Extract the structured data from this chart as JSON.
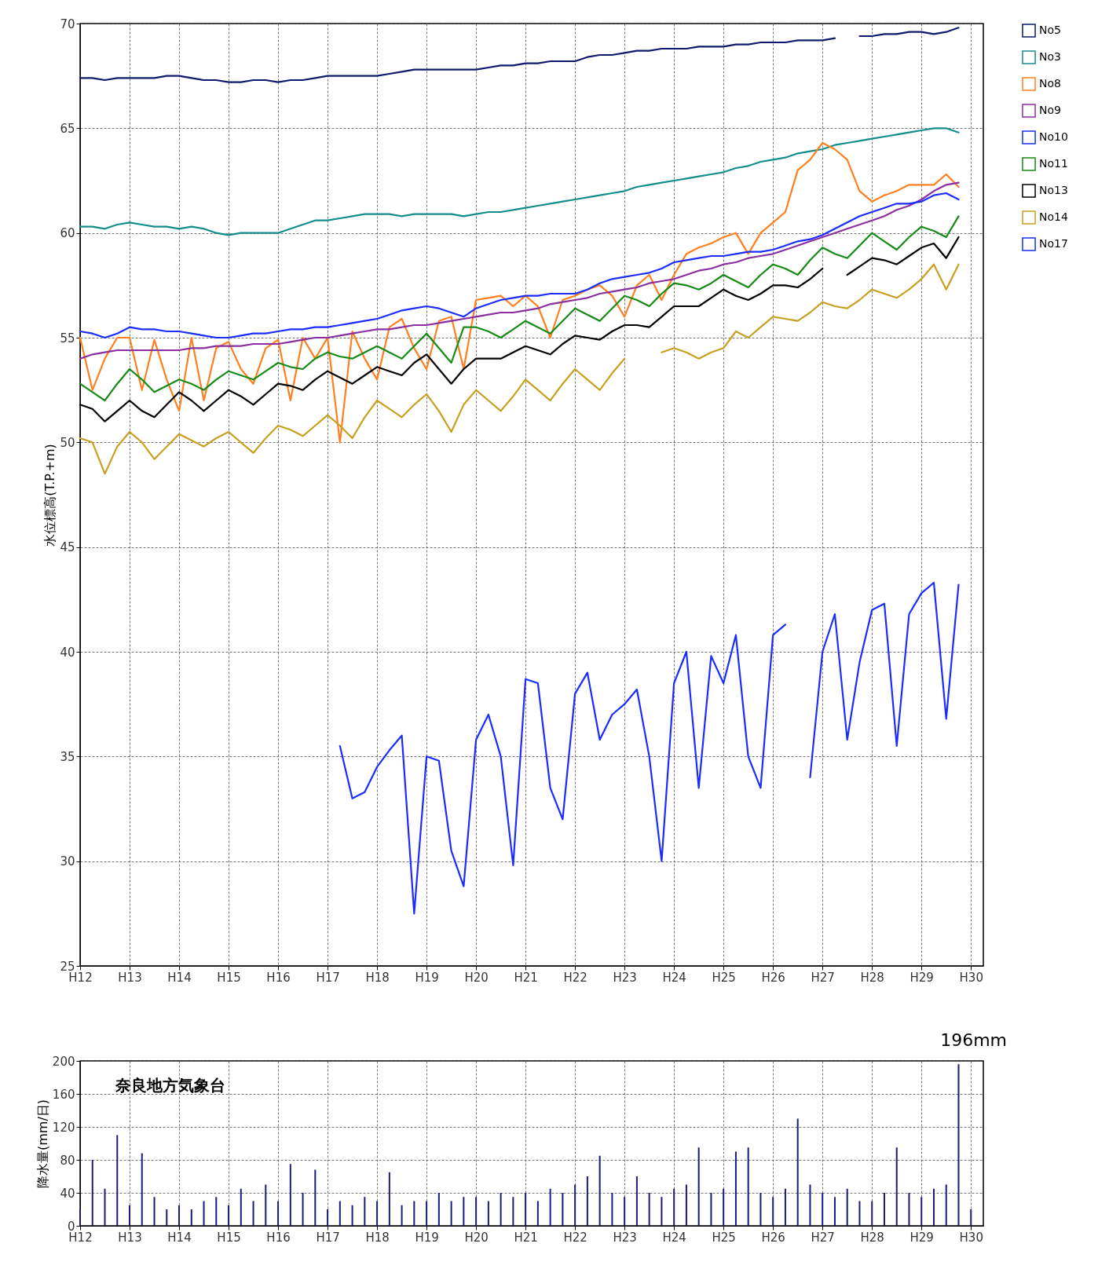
{
  "chart_data": [
    {
      "type": "line",
      "ylabel": "水位標高(T.P.+m)",
      "ylim": [
        25,
        70
      ],
      "categories": [
        "H12",
        null,
        null,
        null,
        "H13",
        null,
        null,
        null,
        "H14",
        null,
        null,
        null,
        "H15",
        null,
        null,
        null,
        "H16",
        null,
        null,
        null,
        "H17",
        null,
        null,
        null,
        "H18",
        null,
        null,
        null,
        "H19",
        null,
        null,
        null,
        "H20",
        null,
        null,
        null,
        "H21",
        null,
        null,
        null,
        "H22",
        null,
        null,
        null,
        "H23",
        null,
        null,
        null,
        "H24",
        null,
        null,
        null,
        "H25",
        null,
        null,
        null,
        "H26",
        null,
        null,
        null,
        "H27",
        null,
        null,
        null,
        "H28",
        null,
        null,
        null,
        "H29",
        null,
        null,
        null,
        "H30",
        null
      ],
      "yticks": [
        25,
        30,
        35,
        40,
        45,
        50,
        55,
        60,
        65,
        70
      ],
      "grid": true,
      "legend": "right",
      "line_style": "solid",
      "series": [
        {
          "name": "No5",
          "color": "#0d1a6e",
          "values": [
            67.4,
            67.4,
            67.3,
            67.4,
            67.4,
            67.4,
            67.4,
            67.5,
            67.5,
            67.4,
            67.3,
            67.3,
            67.2,
            67.2,
            67.3,
            67.3,
            67.2,
            67.3,
            67.3,
            67.4,
            67.5,
            67.5,
            67.5,
            67.5,
            67.5,
            67.6,
            67.7,
            67.8,
            67.8,
            67.8,
            67.8,
            67.8,
            67.8,
            67.9,
            68.0,
            68.0,
            68.1,
            68.1,
            68.2,
            68.2,
            68.2,
            68.4,
            68.5,
            68.5,
            68.6,
            68.7,
            68.7,
            68.8,
            68.8,
            68.8,
            68.9,
            68.9,
            68.9,
            69.0,
            69.0,
            69.1,
            69.1,
            69.1,
            69.2,
            69.2,
            69.2,
            69.3,
            null,
            69.4,
            69.4,
            69.5,
            69.5,
            69.6,
            69.6,
            69.5,
            69.6,
            69.8,
            null,
            null
          ]
        },
        {
          "name": "No3",
          "color": "#138c8c",
          "values": [
            60.3,
            60.3,
            60.2,
            60.4,
            60.5,
            60.4,
            60.3,
            60.3,
            60.2,
            60.3,
            60.2,
            60.0,
            59.9,
            60.0,
            60.0,
            60.0,
            60.0,
            60.2,
            60.4,
            60.6,
            60.6,
            60.7,
            60.8,
            60.9,
            60.9,
            60.9,
            60.8,
            60.9,
            60.9,
            60.9,
            60.9,
            60.8,
            60.9,
            61.0,
            61.0,
            61.1,
            61.2,
            61.3,
            61.4,
            61.5,
            61.6,
            61.7,
            61.8,
            61.9,
            62.0,
            62.2,
            62.3,
            62.4,
            62.5,
            62.6,
            62.7,
            62.8,
            62.9,
            63.1,
            63.2,
            63.4,
            63.5,
            63.6,
            63.8,
            63.9,
            64.0,
            64.2,
            64.3,
            64.4,
            64.5,
            64.6,
            64.7,
            64.8,
            64.9,
            65.0,
            65.0,
            64.8,
            null,
            null
          ]
        },
        {
          "name": "No8",
          "color": "#ff7f1f",
          "values": [
            55.0,
            52.5,
            54.0,
            55.0,
            55.0,
            52.5,
            54.9,
            53.0,
            51.5,
            55.0,
            52.0,
            54.5,
            54.8,
            53.5,
            52.8,
            54.5,
            54.9,
            52.0,
            55.0,
            54.0,
            55.0,
            50.0,
            55.3,
            54.0,
            53.0,
            55.5,
            55.9,
            54.5,
            53.5,
            55.8,
            56.0,
            53.5,
            56.8,
            56.9,
            57.0,
            56.5,
            57.0,
            56.5,
            55.0,
            56.8,
            57.0,
            57.3,
            57.5,
            57.0,
            56.0,
            57.5,
            58.0,
            56.8,
            58.0,
            59.0,
            59.3,
            59.5,
            59.8,
            60.0,
            59.0,
            60.0,
            60.5,
            61.0,
            63.0,
            63.5,
            64.3,
            64.0,
            63.5,
            62.0,
            61.5,
            61.8,
            62.0,
            62.3,
            62.3,
            62.3,
            62.8,
            62.2,
            null,
            null
          ]
        },
        {
          "name": "No9",
          "color": "#8b2fa0",
          "values": [
            54.0,
            54.2,
            54.3,
            54.4,
            54.4,
            54.4,
            54.4,
            54.4,
            54.4,
            54.5,
            54.5,
            54.6,
            54.6,
            54.6,
            54.7,
            54.7,
            54.7,
            54.8,
            54.9,
            55.0,
            55.0,
            55.1,
            55.2,
            55.3,
            55.4,
            55.4,
            55.5,
            55.6,
            55.6,
            55.7,
            55.8,
            55.9,
            56.0,
            56.1,
            56.2,
            56.2,
            56.3,
            56.4,
            56.6,
            56.7,
            56.8,
            56.9,
            57.1,
            57.2,
            57.3,
            57.4,
            57.6,
            57.7,
            57.8,
            58.0,
            58.2,
            58.3,
            58.5,
            58.6,
            58.8,
            58.9,
            59.0,
            59.2,
            59.4,
            59.6,
            59.8,
            60.0,
            60.2,
            60.4,
            60.6,
            60.8,
            61.1,
            61.3,
            61.6,
            62.0,
            62.3,
            62.4,
            null,
            null
          ]
        },
        {
          "name": "No10",
          "color": "#1a2cff",
          "values": [
            55.3,
            55.2,
            55.0,
            55.2,
            55.5,
            55.4,
            55.4,
            55.3,
            55.3,
            55.2,
            55.1,
            55.0,
            55.0,
            55.1,
            55.2,
            55.2,
            55.3,
            55.4,
            55.4,
            55.5,
            55.5,
            55.6,
            55.7,
            55.8,
            55.9,
            56.1,
            56.3,
            56.4,
            56.5,
            56.4,
            56.2,
            56.0,
            56.4,
            56.6,
            56.8,
            56.9,
            57.0,
            57.0,
            57.1,
            57.1,
            57.1,
            57.3,
            57.6,
            57.8,
            57.9,
            58.0,
            58.1,
            58.3,
            58.6,
            58.7,
            58.8,
            58.9,
            58.9,
            59.0,
            59.1,
            59.1,
            59.2,
            59.4,
            59.6,
            59.7,
            59.9,
            60.2,
            60.5,
            60.8,
            61.0,
            61.2,
            61.4,
            61.4,
            61.5,
            61.8,
            61.9,
            61.6,
            null,
            null
          ]
        },
        {
          "name": "No11",
          "color": "#158a15",
          "values": [
            52.8,
            52.4,
            52.0,
            52.8,
            53.5,
            53.0,
            52.4,
            52.7,
            53.0,
            52.8,
            52.5,
            53.0,
            53.4,
            53.2,
            53.0,
            53.4,
            53.8,
            53.6,
            53.5,
            54.0,
            54.3,
            54.1,
            54.0,
            54.3,
            54.6,
            54.3,
            54.0,
            54.6,
            55.2,
            54.5,
            53.8,
            55.5,
            55.5,
            55.3,
            55.0,
            55.4,
            55.8,
            55.5,
            55.2,
            55.8,
            56.4,
            56.1,
            55.8,
            56.4,
            57.0,
            56.8,
            56.5,
            57.1,
            57.6,
            57.5,
            57.3,
            57.6,
            58.0,
            57.7,
            57.4,
            58.0,
            58.5,
            58.3,
            58.0,
            58.7,
            59.3,
            59.0,
            58.8,
            59.4,
            60.0,
            59.6,
            59.2,
            59.8,
            60.3,
            60.1,
            59.8,
            60.8,
            null,
            null
          ]
        },
        {
          "name": "No13",
          "color": "#000000",
          "values": [
            51.8,
            51.6,
            51.0,
            51.5,
            52.0,
            51.5,
            51.2,
            51.8,
            52.4,
            52.0,
            51.5,
            52.0,
            52.5,
            52.2,
            51.8,
            52.3,
            52.8,
            52.7,
            52.5,
            53.0,
            53.4,
            53.1,
            52.8,
            53.2,
            53.6,
            53.4,
            53.2,
            53.8,
            54.2,
            53.5,
            52.8,
            53.5,
            54.0,
            54.0,
            54.0,
            54.3,
            54.6,
            54.4,
            54.2,
            54.7,
            55.1,
            55.0,
            54.9,
            55.3,
            55.6,
            55.6,
            55.5,
            56.0,
            56.5,
            56.5,
            56.5,
            56.9,
            57.3,
            57.0,
            56.8,
            57.1,
            57.5,
            57.5,
            57.4,
            57.8,
            58.3,
            null,
            58.0,
            58.4,
            58.8,
            58.7,
            58.5,
            58.9,
            59.3,
            59.5,
            58.8,
            59.8,
            null,
            null
          ]
        },
        {
          "name": "No14",
          "color": "#c8a020",
          "values": [
            50.2,
            50.0,
            48.5,
            49.8,
            50.5,
            50.0,
            49.2,
            49.8,
            50.4,
            50.1,
            49.8,
            50.2,
            50.5,
            50.0,
            49.5,
            50.2,
            50.8,
            50.6,
            50.3,
            50.8,
            51.3,
            50.8,
            50.2,
            51.2,
            52.0,
            51.6,
            51.2,
            51.8,
            52.3,
            51.5,
            50.5,
            51.8,
            52.5,
            52.0,
            51.5,
            52.2,
            53.0,
            52.5,
            52.0,
            52.8,
            53.5,
            53.0,
            52.5,
            53.3,
            54.0,
            null,
            null,
            54.3,
            54.5,
            54.3,
            54.0,
            54.3,
            54.5,
            55.3,
            55.0,
            55.5,
            56.0,
            55.9,
            55.8,
            56.2,
            56.7,
            56.5,
            56.4,
            56.8,
            57.3,
            57.1,
            56.9,
            57.3,
            57.8,
            58.5,
            57.3,
            58.5,
            null,
            null
          ]
        },
        {
          "name": "No17",
          "color": "#1a2cff",
          "values": [
            null,
            null,
            null,
            null,
            null,
            null,
            null,
            null,
            null,
            null,
            null,
            null,
            null,
            null,
            null,
            null,
            null,
            null,
            null,
            null,
            null,
            35.5,
            33.0,
            33.3,
            34.5,
            35.3,
            36.0,
            27.5,
            35.0,
            34.8,
            30.5,
            28.8,
            35.8,
            37.0,
            35.0,
            29.8,
            38.7,
            38.5,
            33.5,
            32.0,
            38.0,
            39.0,
            35.8,
            37.0,
            37.5,
            38.2,
            35.0,
            30.0,
            38.5,
            40.0,
            33.5,
            39.8,
            38.5,
            40.8,
            35.0,
            33.5,
            40.8,
            41.3,
            null,
            34.0,
            40.0,
            41.8,
            35.8,
            39.5,
            42.0,
            42.3,
            35.5,
            41.8,
            42.8,
            43.3,
            36.8,
            43.2,
            null,
            null
          ]
        }
      ]
    },
    {
      "type": "bar",
      "ylabel": "降水量(mm/日)",
      "ylim": [
        0,
        200
      ],
      "yticks": [
        0,
        40,
        80,
        120,
        160,
        200
      ],
      "grid": true,
      "color": "#1b1b7a",
      "categories": [
        "H12",
        null,
        null,
        null,
        "H13",
        null,
        null,
        null,
        "H14",
        null,
        null,
        null,
        "H15",
        null,
        null,
        null,
        "H16",
        null,
        null,
        null,
        "H17",
        null,
        null,
        null,
        "H18",
        null,
        null,
        null,
        "H19",
        null,
        null,
        null,
        "H20",
        null,
        null,
        null,
        "H21",
        null,
        null,
        null,
        "H22",
        null,
        null,
        null,
        "H23",
        null,
        null,
        null,
        "H24",
        null,
        null,
        null,
        "H25",
        null,
        null,
        null,
        "H26",
        null,
        null,
        null,
        "H27",
        null,
        null,
        null,
        "H28",
        null,
        null,
        null,
        "H29",
        null,
        null,
        null,
        "H30",
        null
      ],
      "values": [
        20,
        80,
        45,
        110,
        25,
        88,
        35,
        20,
        25,
        20,
        30,
        35,
        25,
        45,
        30,
        50,
        30,
        75,
        40,
        68,
        20,
        30,
        25,
        35,
        30,
        65,
        25,
        30,
        30,
        40,
        30,
        35,
        35,
        30,
        40,
        35,
        40,
        30,
        45,
        40,
        50,
        60,
        85,
        40,
        35,
        60,
        40,
        35,
        45,
        50,
        95,
        40,
        45,
        90,
        95,
        40,
        35,
        45,
        130,
        50,
        40,
        35,
        45,
        30,
        30,
        40,
        95,
        40,
        35,
        45,
        50,
        196,
        20,
        null
      ],
      "annotations": [
        "196mm",
        "奈良地方気象台"
      ]
    }
  ]
}
